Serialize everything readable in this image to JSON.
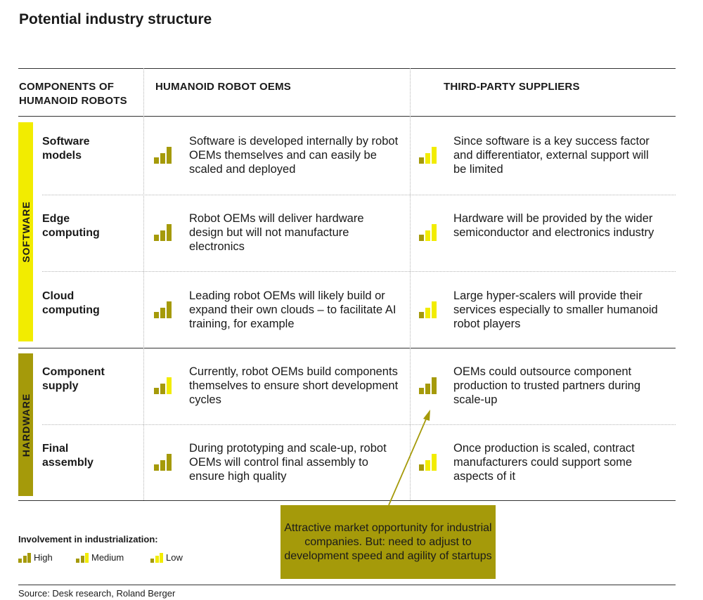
{
  "title": "Potential industry structure",
  "headers": {
    "components": "COMPONENTS OF\nHUMANOID ROBOTS",
    "oems": "HUMANOID ROBOT OEMS",
    "suppliers": "THIRD-PARTY SUPPLIERS"
  },
  "bands": {
    "software": {
      "label": "SOFTWARE",
      "color": "#f2ec00"
    },
    "hardware": {
      "label": "HARDWARE",
      "color": "#a59a0a"
    }
  },
  "colors": {
    "dark": "#a59a0a",
    "bright": "#f2ec00"
  },
  "rows": [
    {
      "name": "Software\nmodels",
      "oem": {
        "level": "High",
        "text": "Software is developed internally by robot OEMs themselves and can easily be scaled and deployed"
      },
      "supplier": {
        "level": "Low",
        "text": "Since software is a key success factor and differentiator, external support will be limited"
      }
    },
    {
      "name": "Edge\ncomputing",
      "oem": {
        "level": "High",
        "text": "Robot OEMs will deliver hardware design but will not manufacture electronics"
      },
      "supplier": {
        "level": "Low",
        "text": "Hardware will be provided by the wider semiconductor and electronics industry"
      }
    },
    {
      "name": "Cloud\ncomputing",
      "oem": {
        "level": "High",
        "text": "Leading robot OEMs will likely build or expand their own clouds – to facilitate AI training, for example"
      },
      "supplier": {
        "level": "Low",
        "text": "Large hyper-scalers will provide their services especially to smaller humanoid robot players"
      }
    },
    {
      "name": "Component\nsupply",
      "oem": {
        "level": "Medium",
        "text": "Currently, robot OEMs build components themselves to ensure short development cycles"
      },
      "supplier": {
        "level": "High",
        "text": "OEMs could outsource component production to trusted partners during scale-up"
      }
    },
    {
      "name": "Final\nassembly",
      "oem": {
        "level": "High",
        "text": "During prototyping and scale-up, robot OEMs will control final assembly to ensure high quality"
      },
      "supplier": {
        "level": "Low",
        "text": "Once production is scaled, contract manufacturers could support some aspects of it"
      }
    }
  ],
  "legend": {
    "title": "Involvement in industrialization:",
    "items": [
      {
        "level": "High",
        "label": "High"
      },
      {
        "level": "Medium",
        "label": "Medium"
      },
      {
        "level": "Low",
        "label": "Low"
      }
    ]
  },
  "callout": "Attractive market opportunity for industrial companies. But: need to adjust to development speed and agility of startups",
  "source": "Source: Desk research, Roland Berger"
}
